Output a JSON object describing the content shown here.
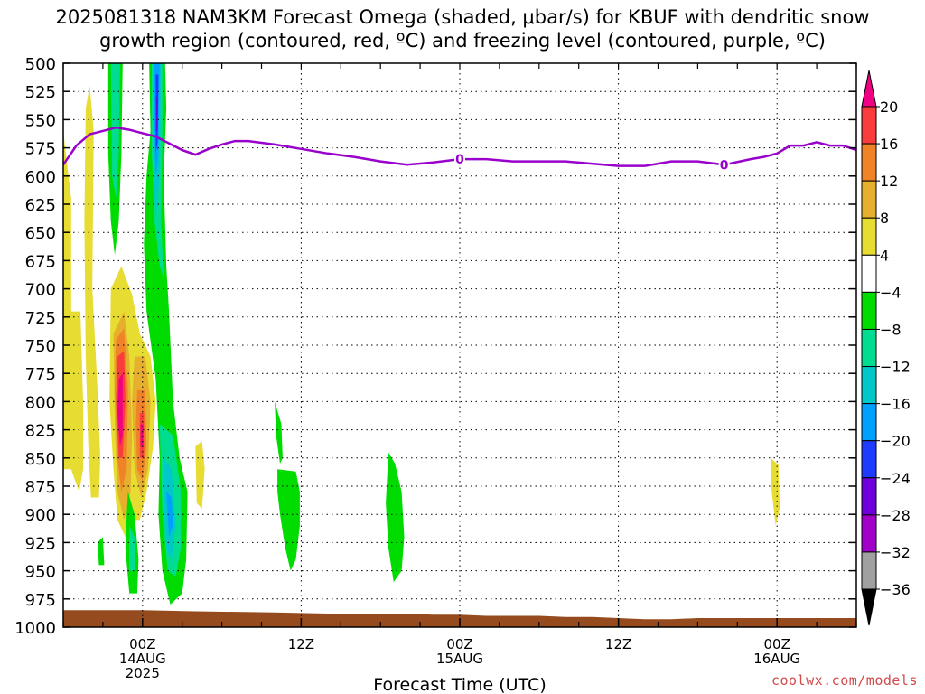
{
  "chart_data": {
    "type": "heatmap",
    "title_line1": "2025081318 NAM3KM Forecast Omega (shaded, μbar/s) for KBUF with dendritic snow",
    "title_line2": "growth region (contoured, red, ºC) and freezing level (contoured, purple, ºC)",
    "xlabel": "Forecast Time (UTC)",
    "ylabel": "",
    "x_unit": "hours since 2025-08-13 18Z",
    "xlim": [
      0,
      60
    ],
    "ylim": [
      500,
      1000
    ],
    "y_inverted": true,
    "yticks": [
      500,
      525,
      550,
      575,
      600,
      625,
      650,
      675,
      700,
      725,
      750,
      775,
      800,
      825,
      850,
      875,
      900,
      925,
      950,
      975,
      1000
    ],
    "x_major_ticks": [
      {
        "x": 6,
        "lines": [
          "00Z",
          "14AUG",
          "2025"
        ]
      },
      {
        "x": 18,
        "lines": [
          "12Z"
        ]
      },
      {
        "x": 30,
        "lines": [
          "00Z",
          "15AUG"
        ]
      },
      {
        "x": 42,
        "lines": [
          "12Z"
        ]
      },
      {
        "x": 54,
        "lines": [
          "00Z",
          "16AUG"
        ]
      }
    ],
    "x_minor_every_hours": 3,
    "grid": true,
    "colorbar": {
      "levels": [
        -36,
        -32,
        -28,
        -24,
        -20,
        -16,
        -12,
        -8,
        -4,
        4,
        8,
        12,
        16,
        20
      ],
      "colors": [
        "#000000",
        "#a0a0a0",
        "#a000c8",
        "#6e00dc",
        "#1e3cff",
        "#00a0ff",
        "#00c8c8",
        "#00dc90",
        "#00dc00",
        "#ffffff",
        "#e6dc32",
        "#e6af2d",
        "#f08228",
        "#fa3c3c",
        "#f00082"
      ],
      "labels": [
        "20",
        "16",
        "12",
        "8",
        "4",
        "−4",
        "−8",
        "−12",
        "−16",
        "−20",
        "−24",
        "−28",
        "−32",
        "−36"
      ]
    },
    "freezing_level": {
      "label": "0",
      "label_positions_x": [
        30,
        50
      ],
      "x": [
        0,
        1,
        2,
        3,
        4,
        5,
        6,
        7,
        8,
        9,
        10,
        11,
        12,
        13,
        14,
        16,
        18,
        20,
        22,
        24,
        26,
        28,
        30,
        32,
        34,
        36,
        38,
        40,
        42,
        44,
        46,
        48,
        50,
        52,
        53,
        54,
        55,
        56,
        57,
        58,
        59,
        60
      ],
      "y": [
        590,
        573,
        563,
        560,
        557,
        559,
        562,
        565,
        571,
        577,
        581,
        576,
        572,
        569,
        569,
        572,
        576,
        580,
        583,
        587,
        590,
        588,
        585,
        585,
        587,
        587,
        587,
        589,
        591,
        591,
        587,
        587,
        590,
        585,
        583,
        580,
        573,
        573,
        570,
        573,
        573,
        577
      ],
      "color": "#9900cc"
    },
    "terrain": {
      "color": "#964b1e",
      "x": [
        0,
        6,
        10,
        16,
        20,
        26,
        28,
        30,
        32,
        34,
        36,
        38,
        40,
        42,
        44,
        46,
        48,
        50,
        52,
        54,
        56,
        58,
        60
      ],
      "y": [
        985,
        985,
        986,
        987,
        988,
        988,
        989,
        989,
        990,
        990,
        990,
        991,
        991,
        992,
        993,
        993,
        992,
        992,
        992,
        992,
        992,
        992,
        992
      ]
    },
    "omega_regions": [
      {
        "value": 6,
        "points": [
          [
            0,
            560
          ],
          [
            0.6,
            620
          ],
          [
            0.6,
            780
          ],
          [
            0,
            790
          ]
        ]
      },
      {
        "value": 6,
        "points": [
          [
            0,
            720
          ],
          [
            1.3,
            720
          ],
          [
            1.5,
            800
          ],
          [
            1.5,
            860
          ],
          [
            1.2,
            880
          ],
          [
            0.6,
            860
          ],
          [
            0,
            860
          ]
        ]
      },
      {
        "value": 6,
        "points": [
          [
            1.7,
            540
          ],
          [
            2.0,
            520
          ],
          [
            2.3,
            560
          ],
          [
            2.2,
            700
          ],
          [
            2.6,
            790
          ],
          [
            2.8,
            850
          ],
          [
            2.7,
            885
          ],
          [
            2.1,
            885
          ],
          [
            1.9,
            840
          ],
          [
            1.7,
            760
          ],
          [
            1.6,
            640
          ]
        ]
      },
      {
        "value": 6,
        "points": [
          [
            3.6,
            700
          ],
          [
            4.4,
            680
          ],
          [
            5.2,
            705
          ],
          [
            5.8,
            740
          ],
          [
            6.6,
            760
          ],
          [
            7.0,
            800
          ],
          [
            6.8,
            840
          ],
          [
            6.3,
            880
          ],
          [
            5.8,
            905
          ],
          [
            5.3,
            905
          ],
          [
            4.7,
            920
          ],
          [
            4.1,
            905
          ],
          [
            3.8,
            860
          ],
          [
            3.5,
            800
          ]
        ]
      },
      {
        "value": 6,
        "points": [
          [
            10.0,
            840
          ],
          [
            10.5,
            835
          ],
          [
            10.7,
            860
          ],
          [
            10.5,
            895
          ],
          [
            10.1,
            890
          ]
        ]
      },
      {
        "value": 6,
        "points": [
          [
            53.5,
            850
          ],
          [
            54.1,
            856
          ],
          [
            54.2,
            895
          ],
          [
            53.9,
            910
          ],
          [
            53.6,
            880
          ]
        ]
      },
      {
        "value": 10,
        "points": [
          [
            3.8,
            740
          ],
          [
            4.6,
            720
          ],
          [
            5.0,
            760
          ],
          [
            5.2,
            830
          ],
          [
            5.1,
            880
          ],
          [
            4.6,
            905
          ],
          [
            4.1,
            880
          ],
          [
            3.9,
            820
          ]
        ]
      },
      {
        "value": 10,
        "points": [
          [
            5.4,
            760
          ],
          [
            6.2,
            760
          ],
          [
            6.6,
            800
          ],
          [
            6.4,
            860
          ],
          [
            5.9,
            885
          ],
          [
            5.4,
            860
          ],
          [
            5.2,
            800
          ]
        ]
      },
      {
        "value": 14,
        "points": [
          [
            4.0,
            745
          ],
          [
            4.6,
            735
          ],
          [
            4.9,
            790
          ],
          [
            4.8,
            860
          ],
          [
            4.4,
            880
          ],
          [
            4.1,
            850
          ],
          [
            3.9,
            790
          ]
        ]
      },
      {
        "value": 14,
        "points": [
          [
            5.6,
            790
          ],
          [
            6.2,
            790
          ],
          [
            6.3,
            840
          ],
          [
            6.0,
            870
          ],
          [
            5.6,
            860
          ],
          [
            5.5,
            820
          ]
        ]
      },
      {
        "value": 18,
        "points": [
          [
            4.1,
            760
          ],
          [
            4.6,
            755
          ],
          [
            4.7,
            800
          ],
          [
            4.5,
            850
          ],
          [
            4.2,
            850
          ],
          [
            4.0,
            800
          ]
        ]
      },
      {
        "value": 20,
        "points": [
          [
            4.2,
            780
          ],
          [
            4.5,
            775
          ],
          [
            4.5,
            830
          ],
          [
            4.3,
            840
          ],
          [
            4.1,
            810
          ]
        ]
      },
      {
        "value": 18,
        "points": [
          [
            5.8,
            810
          ],
          [
            6.1,
            810
          ],
          [
            6.1,
            850
          ],
          [
            5.8,
            850
          ]
        ]
      },
      {
        "value": 20,
        "points": [
          [
            5.85,
            820
          ],
          [
            6.05,
            820
          ],
          [
            6.05,
            840
          ],
          [
            5.85,
            840
          ]
        ]
      },
      {
        "value": -6,
        "points": [
          [
            3.4,
            500
          ],
          [
            4.5,
            500
          ],
          [
            4.4,
            580
          ],
          [
            4.2,
            640
          ],
          [
            3.9,
            670
          ],
          [
            3.6,
            640
          ],
          [
            3.4,
            580
          ]
        ]
      },
      {
        "value": -6,
        "points": [
          [
            6.5,
            500
          ],
          [
            7.7,
            500
          ],
          [
            7.8,
            540
          ],
          [
            7.6,
            600
          ],
          [
            7.8,
            680
          ],
          [
            8.0,
            720
          ],
          [
            8.3,
            800
          ],
          [
            8.8,
            850
          ],
          [
            9.4,
            880
          ],
          [
            9.3,
            940
          ],
          [
            9.0,
            970
          ],
          [
            8.1,
            980
          ],
          [
            7.5,
            950
          ],
          [
            7.2,
            900
          ],
          [
            7.3,
            850
          ],
          [
            7.0,
            780
          ],
          [
            6.3,
            720
          ],
          [
            6.1,
            660
          ],
          [
            6.3,
            600
          ],
          [
            6.6,
            560
          ]
        ]
      },
      {
        "value": -6,
        "points": [
          [
            4.9,
            880
          ],
          [
            5.4,
            900
          ],
          [
            5.7,
            940
          ],
          [
            5.6,
            970
          ],
          [
            5.0,
            970
          ],
          [
            4.7,
            930
          ],
          [
            4.8,
            900
          ]
        ]
      },
      {
        "value": -6,
        "points": [
          [
            2.6,
            925
          ],
          [
            3.0,
            920
          ],
          [
            3.1,
            945
          ],
          [
            2.7,
            945
          ]
        ]
      },
      {
        "value": -6,
        "points": [
          [
            16.0,
            800
          ],
          [
            16.5,
            820
          ],
          [
            16.6,
            850
          ],
          [
            16.4,
            855
          ],
          [
            16.1,
            830
          ]
        ]
      },
      {
        "value": -6,
        "points": [
          [
            16.2,
            860
          ],
          [
            17.6,
            862
          ],
          [
            17.9,
            880
          ],
          [
            17.9,
            910
          ],
          [
            17.6,
            940
          ],
          [
            17.2,
            950
          ],
          [
            16.8,
            930
          ],
          [
            16.4,
            900
          ],
          [
            16.2,
            880
          ]
        ]
      },
      {
        "value": -6,
        "points": [
          [
            24.6,
            845
          ],
          [
            25.1,
            855
          ],
          [
            25.6,
            880
          ],
          [
            25.8,
            920
          ],
          [
            25.6,
            950
          ],
          [
            25.0,
            960
          ],
          [
            24.6,
            930
          ],
          [
            24.4,
            890
          ]
        ]
      },
      {
        "value": -10,
        "points": [
          [
            3.6,
            500
          ],
          [
            4.3,
            500
          ],
          [
            4.2,
            580
          ],
          [
            4.0,
            620
          ],
          [
            3.7,
            600
          ]
        ]
      },
      {
        "value": -10,
        "points": [
          [
            6.7,
            500
          ],
          [
            7.5,
            500
          ],
          [
            7.5,
            560
          ],
          [
            7.4,
            640
          ],
          [
            7.6,
            690
          ],
          [
            7.3,
            680
          ],
          [
            6.9,
            640
          ],
          [
            6.7,
            580
          ]
        ]
      },
      {
        "value": -10,
        "points": [
          [
            7.3,
            820
          ],
          [
            8.3,
            830
          ],
          [
            8.9,
            880
          ],
          [
            8.9,
            930
          ],
          [
            8.5,
            955
          ],
          [
            7.9,
            950
          ],
          [
            7.5,
            900
          ],
          [
            7.4,
            860
          ]
        ]
      },
      {
        "value": -10,
        "points": [
          [
            5.0,
            910
          ],
          [
            5.4,
            920
          ],
          [
            5.4,
            950
          ],
          [
            5.0,
            950
          ]
        ]
      },
      {
        "value": -14,
        "points": [
          [
            6.8,
            500
          ],
          [
            7.4,
            500
          ],
          [
            7.3,
            600
          ],
          [
            7.0,
            640
          ],
          [
            6.8,
            580
          ]
        ]
      },
      {
        "value": -14,
        "points": [
          [
            7.6,
            850
          ],
          [
            8.2,
            860
          ],
          [
            8.5,
            910
          ],
          [
            8.2,
            940
          ],
          [
            7.8,
            930
          ],
          [
            7.6,
            890
          ]
        ]
      },
      {
        "value": -18,
        "points": [
          [
            6.9,
            500
          ],
          [
            7.3,
            500
          ],
          [
            7.2,
            580
          ],
          [
            7.0,
            600
          ],
          [
            6.9,
            560
          ]
        ]
      },
      {
        "value": -18,
        "points": [
          [
            7.8,
            880
          ],
          [
            8.2,
            885
          ],
          [
            8.3,
            910
          ],
          [
            8.0,
            920
          ]
        ]
      },
      {
        "value": -22,
        "points": [
          [
            7.0,
            510
          ],
          [
            7.2,
            510
          ],
          [
            7.15,
            570
          ],
          [
            7.0,
            580
          ]
        ]
      },
      {
        "value": -26,
        "points": [
          [
            7.05,
            530
          ],
          [
            7.15,
            530
          ],
          [
            7.12,
            560
          ],
          [
            7.05,
            560
          ]
        ]
      }
    ],
    "watermark": "coolwx.com/models"
  }
}
